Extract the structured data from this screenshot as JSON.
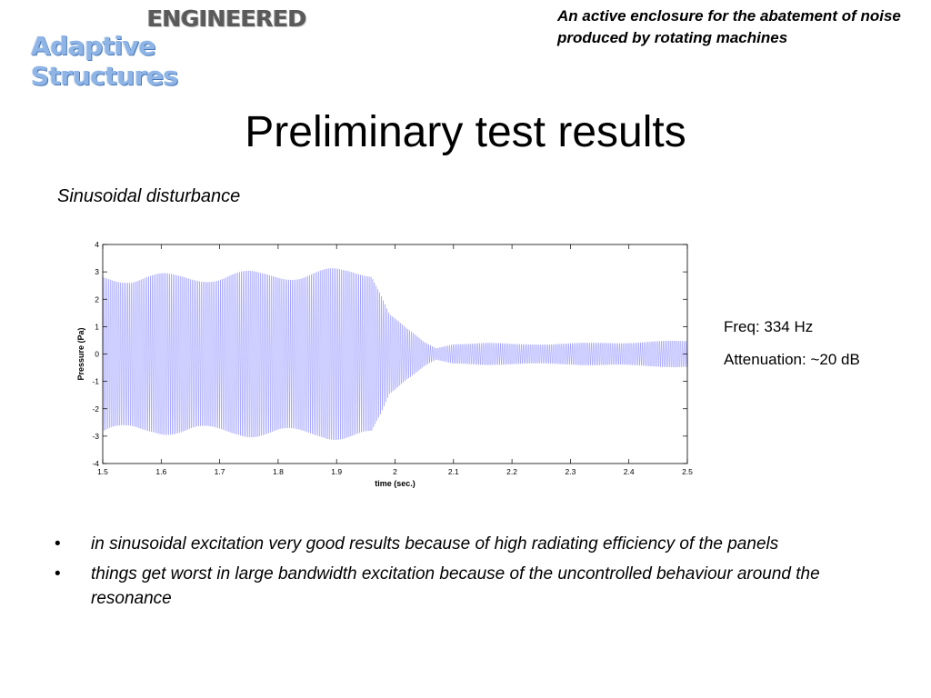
{
  "logo": {
    "line1": "ENGINEERED",
    "line2": "Adaptive Structures"
  },
  "corner_text": "An active enclosure for the abatement of noise produced by rotating machines",
  "title": "Preliminary test results",
  "subtitle": "Sinusoidal disturbance",
  "stats": {
    "freq": "Freq: 334 Hz",
    "attenuation": "Attenuation: ~20 dB"
  },
  "bullets": [
    "in sinusoidal excitation very good results because of high radiating efficiency of the panels",
    "things get worst in large bandwidth excitation because of the uncontrolled behaviour around the resonance"
  ],
  "bullet_symbol": "•",
  "chart_data": {
    "type": "line",
    "xlabel": "time (sec.)",
    "ylabel": "Pressure (Pa)",
    "xlim": [
      1.5,
      2.5
    ],
    "ylim": [
      -4,
      4
    ],
    "xticks": [
      "1.5",
      "1.6",
      "1.7",
      "1.8",
      "1.9",
      "2",
      "2.1",
      "2.2",
      "2.3",
      "2.4",
      "2.5"
    ],
    "yticks": [
      "4",
      "3",
      "2",
      "1",
      "0",
      "-1",
      "-2",
      "-3",
      "-4"
    ],
    "series_color": "#2020ff",
    "frequency_hz": 334,
    "envelope": {
      "t": [
        1.5,
        1.55,
        1.65,
        1.75,
        1.85,
        1.96,
        1.975,
        1.99,
        2.02,
        2.05,
        2.07,
        2.1,
        2.15,
        2.2,
        2.3,
        2.4,
        2.5
      ],
      "amplitude": [
        3.0,
        2.95,
        2.97,
        3.05,
        3.1,
        3.2,
        2.5,
        1.6,
        0.95,
        0.45,
        0.22,
        0.4,
        0.42,
        0.38,
        0.4,
        0.45,
        0.5
      ]
    },
    "grid": false
  }
}
